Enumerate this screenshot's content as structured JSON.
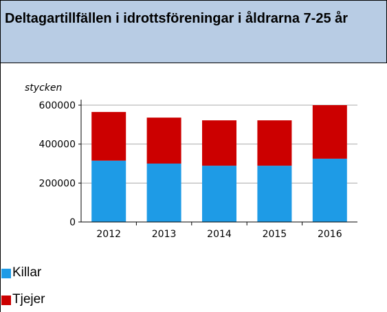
{
  "chart_data": {
    "type": "stacked_bar",
    "title": "Deltagartillfällen i idrottsföreningar i åldrarna 7-25 år",
    "y_label": "stycken",
    "categories": [
      "2012",
      "2013",
      "2014",
      "2015",
      "2016"
    ],
    "series": [
      {
        "name": "Killar",
        "color": "#1e9be6",
        "values": [
          315000,
          300000,
          289000,
          289000,
          325000
        ]
      },
      {
        "name": "Tjejer",
        "color": "#cc0000",
        "values": [
          250000,
          236000,
          233000,
          233000,
          275000
        ]
      }
    ],
    "ylim": [
      0,
      600000
    ],
    "yticks": [
      0,
      200000,
      400000,
      600000
    ],
    "grid": true
  }
}
